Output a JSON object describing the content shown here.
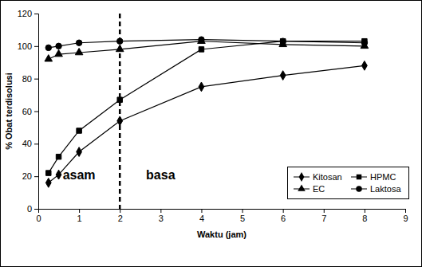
{
  "chart_data": {
    "type": "line",
    "x_label": "Waktu (jam)",
    "y_label": "% Obat terdisolusi",
    "x": [
      0.25,
      0.5,
      1,
      2,
      4,
      6,
      8
    ],
    "series": [
      {
        "name": "Kitosan",
        "color": "#000000",
        "marker": "diamond",
        "values": [
          16,
          21,
          35,
          54,
          75,
          82,
          88
        ]
      },
      {
        "name": "HPMC",
        "color": "#000000",
        "marker": "square",
        "values": [
          22,
          32,
          48,
          67,
          98,
          103,
          103
        ]
      },
      {
        "name": "EC",
        "color": "#000000",
        "marker": "triangle",
        "values": [
          92,
          95,
          96,
          98,
          103,
          101,
          100
        ]
      },
      {
        "name": "Laktosa",
        "color": "#000000",
        "marker": "circle",
        "values": [
          99,
          100,
          102,
          103,
          104,
          103,
          102
        ]
      }
    ],
    "xlim": [
      0,
      9
    ],
    "xticks": [
      0,
      1,
      2,
      3,
      4,
      5,
      6,
      7,
      8,
      9
    ],
    "ylim": [
      0,
      120
    ],
    "yticks": [
      0,
      20,
      40,
      60,
      80,
      100,
      120
    ],
    "grid": false,
    "legend": "lower right",
    "vline": {
      "x": 2,
      "line_style": "dashed",
      "color": "#000000"
    },
    "annotations": [
      {
        "text": "asam",
        "x": 1.0,
        "y": 18
      },
      {
        "text": "basa",
        "x": 3.0,
        "y": 18
      }
    ]
  }
}
